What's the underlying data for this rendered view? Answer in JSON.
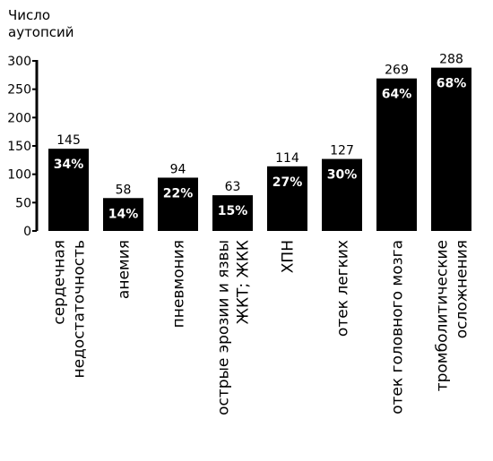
{
  "chart_data": {
    "type": "bar",
    "ylabel": [
      "Число",
      "аутопсий"
    ],
    "ylim": [
      0,
      300
    ],
    "yticks": [
      0,
      50,
      100,
      150,
      200,
      250,
      300
    ],
    "categories": [
      [
        "сердечная",
        "недостаточность"
      ],
      [
        "анемия"
      ],
      [
        "пневмония"
      ],
      [
        "острые эрозии и язвы",
        "ЖКТ; ЖКК"
      ],
      [
        "ХПН"
      ],
      [
        "отек легких"
      ],
      [
        "отек головного мозга"
      ],
      [
        "тромболитические",
        "осложнения"
      ]
    ],
    "values": [
      145,
      58,
      94,
      63,
      114,
      127,
      269,
      288
    ],
    "percent_labels": [
      "34%",
      "14%",
      "22%",
      "15%",
      "27%",
      "30%",
      "64%",
      "68%"
    ],
    "bar_color": "#000000",
    "grid": false
  }
}
